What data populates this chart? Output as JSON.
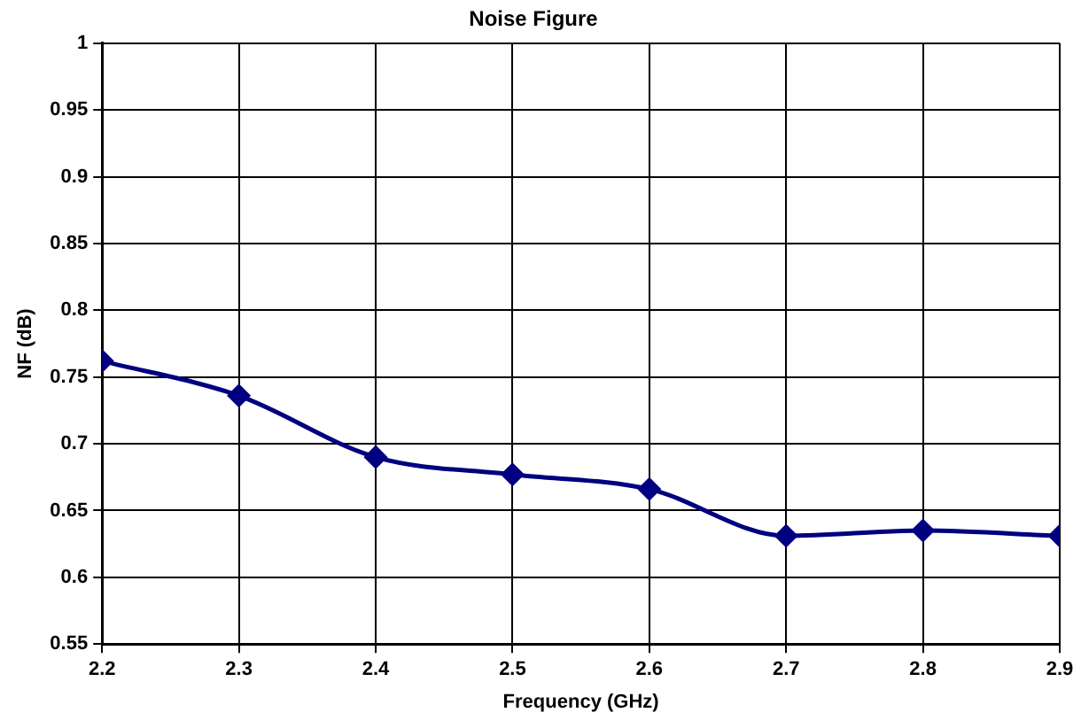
{
  "chart_data": {
    "type": "line",
    "title": "Noise Figure",
    "xlabel": "Frequency (GHz)",
    "ylabel": "NF (dB)",
    "x": [
      2.2,
      2.3,
      2.4,
      2.5,
      2.6,
      2.7,
      2.8,
      2.9
    ],
    "series": [
      {
        "color": "#000080",
        "values": [
          0.762,
          0.736,
          0.69,
          0.677,
          0.666,
          0.631,
          0.635,
          0.631
        ]
      }
    ],
    "xlim": [
      2.2,
      2.9
    ],
    "xticks": [
      2.2,
      2.3,
      2.4,
      2.5,
      2.6,
      2.7,
      2.8,
      2.9
    ],
    "ylim": [
      0.55,
      1
    ],
    "yticks": [
      0.55,
      0.6,
      0.65,
      0.7,
      0.75,
      0.8,
      0.85,
      0.9,
      0.95,
      1
    ],
    "grid": true,
    "legend": false,
    "marker": "diamond",
    "line_style": "solid"
  }
}
